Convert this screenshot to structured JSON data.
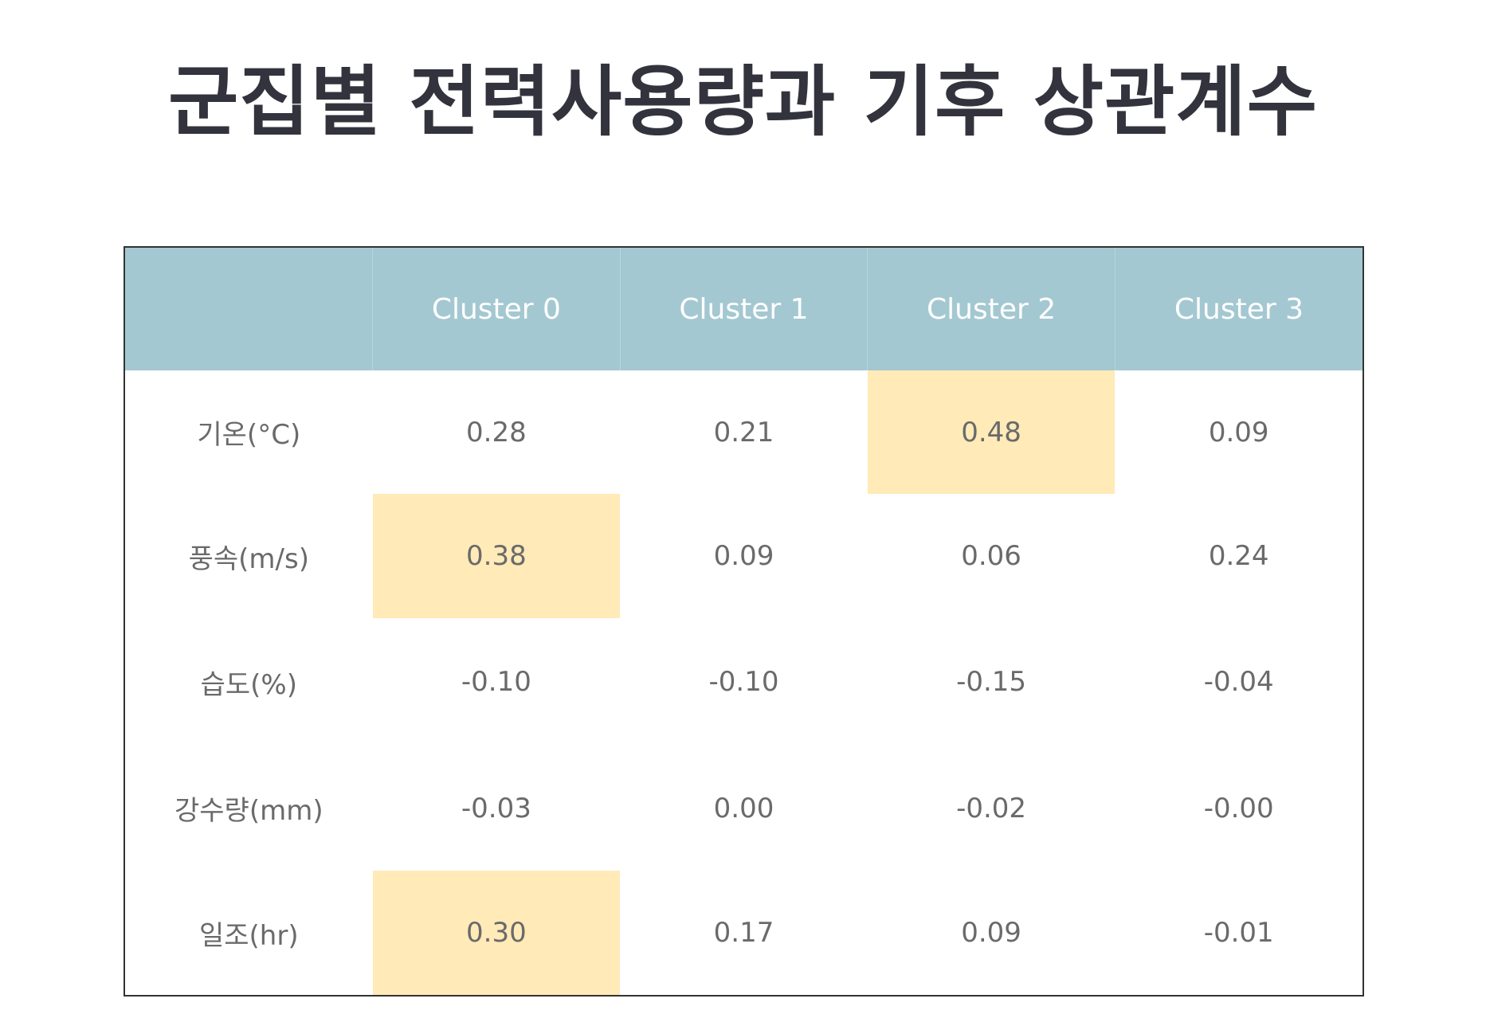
{
  "title": "군집별 전력사용량과 기후 상관계수",
  "colors": {
    "header_bg": "#a4c8d1",
    "header_text": "#ffffff",
    "highlight": "#ffeab8",
    "title_text": "#33333d",
    "cell_text": "#6a6a6a"
  },
  "table": {
    "corner": "",
    "columns": [
      "Cluster 0",
      "Cluster 1",
      "Cluster 2",
      "Cluster 3"
    ],
    "rows": [
      {
        "label": "기온(°C)",
        "cells": [
          "0.28",
          "0.21",
          "0.48",
          "0.09"
        ],
        "highlighted": [
          false,
          false,
          true,
          false
        ]
      },
      {
        "label": "풍속(m/s)",
        "cells": [
          "0.38",
          "0.09",
          "0.06",
          "0.24"
        ],
        "highlighted": [
          true,
          false,
          false,
          false
        ]
      },
      {
        "label": "습도(%)",
        "cells": [
          "-0.10",
          "-0.10",
          "-0.15",
          "-0.04"
        ],
        "highlighted": [
          false,
          false,
          false,
          false
        ]
      },
      {
        "label": "강수량(mm)",
        "cells": [
          "-0.03",
          "0.00",
          "-0.02",
          "-0.00"
        ],
        "highlighted": [
          false,
          false,
          false,
          false
        ]
      },
      {
        "label": "일조(hr)",
        "cells": [
          "0.30",
          "0.17",
          "0.09",
          "-0.01"
        ],
        "highlighted": [
          true,
          false,
          false,
          false
        ]
      }
    ]
  },
  "chart_data": {
    "type": "table",
    "title": "군집별 전력사용량과 기후 상관계수",
    "columns": [
      "Cluster 0",
      "Cluster 1",
      "Cluster 2",
      "Cluster 3"
    ],
    "row_labels": [
      "기온(°C)",
      "풍속(m/s)",
      "습도(%)",
      "강수량(mm)",
      "일조(hr)"
    ],
    "values": [
      [
        0.28,
        0.21,
        0.48,
        0.09
      ],
      [
        0.38,
        0.09,
        0.06,
        0.24
      ],
      [
        -0.1,
        -0.1,
        -0.15,
        -0.04
      ],
      [
        -0.03,
        0.0,
        -0.02,
        -0.0
      ],
      [
        0.3,
        0.17,
        0.09,
        -0.01
      ]
    ],
    "highlighted_cells": [
      [
        0,
        2
      ],
      [
        1,
        0
      ],
      [
        4,
        0
      ]
    ]
  }
}
